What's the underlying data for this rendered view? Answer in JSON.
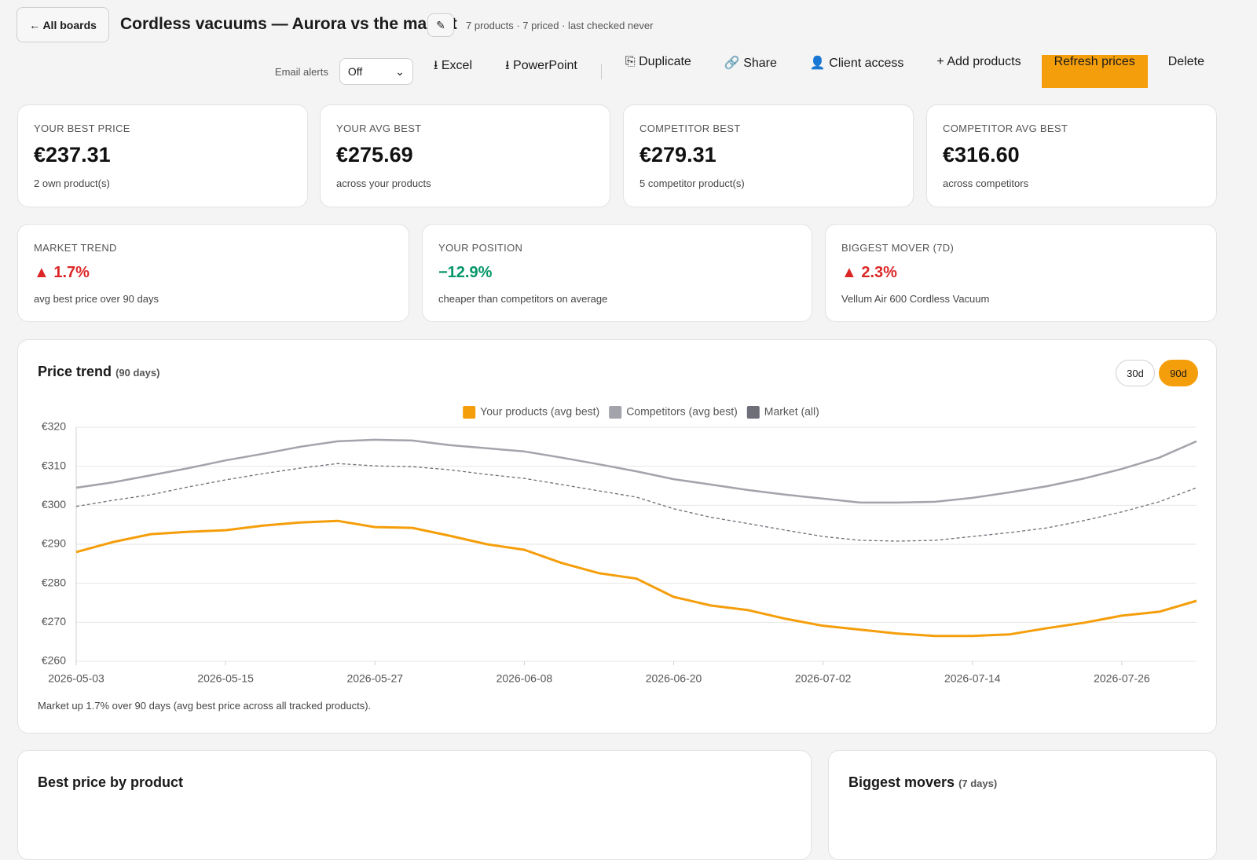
{
  "header": {
    "back": "← All boards",
    "title": "Cordless vacuums — Aurora vs the market",
    "edit": "✎",
    "meta": "7 products · 7 priced · last checked never"
  },
  "toolbar": {
    "email_label": "Email alerts",
    "email_value": "Off",
    "buttons": [
      "⭳ Excel",
      "⭳ PowerPoint",
      "⎘ Duplicate",
      "🔗 Share",
      "👤 Client access",
      "+ Add products",
      "Refresh prices",
      "Delete"
    ]
  },
  "stats": [
    {
      "label": "YOUR BEST PRICE",
      "value": "€237.31",
      "note": "2 own product(s)"
    },
    {
      "label": "YOUR AVG BEST",
      "value": "€275.69",
      "note": "across your products"
    },
    {
      "label": "COMPETITOR BEST",
      "value": "€279.31",
      "note": "5 competitor product(s)"
    },
    {
      "label": "COMPETITOR AVG BEST",
      "value": "€316.60",
      "note": "across competitors"
    }
  ],
  "insights": [
    {
      "label": "MARKET TREND",
      "value": "▲ 1.7%",
      "note": "avg best price over 90 days"
    },
    {
      "label": "YOUR POSITION",
      "value": "−12.9%",
      "note": "cheaper than competitors on average"
    },
    {
      "label": "BIGGEST MOVER (7D)",
      "value": "▲ 2.3%",
      "note": "Vellum Air 600 Cordless Vacuum"
    }
  ],
  "trend": {
    "title": "Price trend",
    "subtitle": "(90 days)",
    "ranges": [
      "30d",
      "90d"
    ],
    "footnote": "Market up 1.7% over 90 days (avg best price across all tracked products)."
  },
  "chart_data": {
    "type": "line",
    "x": [
      "2026-05-03",
      "2026-05-06",
      "2026-05-09",
      "2026-05-12",
      "2026-05-15",
      "2026-05-18",
      "2026-05-21",
      "2026-05-24",
      "2026-05-27",
      "2026-05-30",
      "2026-06-02",
      "2026-06-05",
      "2026-06-08",
      "2026-06-11",
      "2026-06-14",
      "2026-06-17",
      "2026-06-20",
      "2026-06-23",
      "2026-06-26",
      "2026-06-29",
      "2026-07-02",
      "2026-07-05",
      "2026-07-08",
      "2026-07-11",
      "2026-07-14",
      "2026-07-17",
      "2026-07-20",
      "2026-07-23",
      "2026-07-26",
      "2026-07-29",
      "2026-08-01"
    ],
    "xlim": [
      "2026-05-03",
      "2026-08-01"
    ],
    "xticks": [
      "2026-05-03",
      "2026-05-15",
      "2026-05-27",
      "2026-06-08",
      "2026-06-20",
      "2026-07-02",
      "2026-07-14",
      "2026-07-26"
    ],
    "ylim": [
      260,
      320
    ],
    "yticks": [
      {
        "value": 260,
        "label": "€260"
      },
      {
        "value": 270,
        "label": "€270"
      },
      {
        "value": 280,
        "label": "€280"
      },
      {
        "value": 290,
        "label": "€290"
      },
      {
        "value": 300,
        "label": "€300"
      },
      {
        "value": 310,
        "label": "€310"
      },
      {
        "value": 320,
        "label": "€320"
      }
    ],
    "grid": true,
    "legend": "top",
    "series": [
      {
        "name": "Your products (avg best)",
        "color": "#f59e0b",
        "values": [
          288,
          290.6,
          292.6,
          293.2,
          293.6,
          294.8,
          295.6,
          296,
          294.4,
          294.2,
          292.2,
          290,
          288.6,
          285.2,
          282.6,
          281.2,
          276.5,
          274.3,
          273.1,
          270.9,
          269.1,
          268.1,
          267.1,
          266.5,
          266.5,
          266.9,
          268.5,
          269.9,
          271.7,
          272.7,
          275.5
        ]
      },
      {
        "name": "Competitors (avg best)",
        "color": "#a3a3ab",
        "values": [
          304.5,
          305.9,
          307.7,
          309.5,
          311.5,
          313.2,
          315,
          316.4,
          316.8,
          316.6,
          315.4,
          314.6,
          313.8,
          312.2,
          310.5,
          308.7,
          306.7,
          305.3,
          303.9,
          302.7,
          301.7,
          300.7,
          300.7,
          300.9,
          301.9,
          303.3,
          304.9,
          306.9,
          309.3,
          312.2,
          316.4
        ]
      },
      {
        "name": "Market (all)",
        "color": "#6e6e78",
        "dashed": true,
        "values": [
          299.7,
          301.3,
          302.7,
          304.7,
          306.5,
          308.1,
          309.5,
          310.7,
          310.1,
          309.9,
          309.1,
          307.9,
          306.9,
          305.3,
          303.7,
          302.1,
          299.1,
          296.9,
          295.3,
          293.6,
          292,
          291,
          290.8,
          291,
          292,
          293,
          294.2,
          296.1,
          298.3,
          300.9,
          304.5
        ]
      }
    ]
  },
  "panels": [
    {
      "title": "Best price by product"
    },
    {
      "title": "Biggest movers",
      "subtitle": "(7 days)"
    }
  ]
}
